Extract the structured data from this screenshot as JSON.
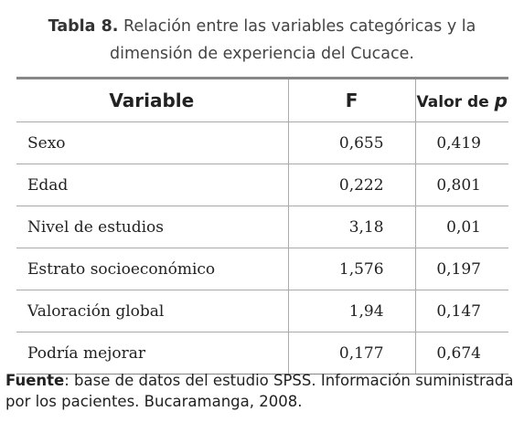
{
  "caption": {
    "label": "Tabla 8.",
    "text": "Relación entre las variables categóricas y la dimensión de experiencia del Cucace."
  },
  "table": {
    "header": {
      "variable": "Variable",
      "f": "F",
      "p_prefix": "Valor de ",
      "p_symbol": "p"
    },
    "rows": [
      [
        "Sexo",
        "0,655",
        "0,419"
      ],
      [
        "Edad",
        "0,222",
        "0,801"
      ],
      [
        "Nivel de estudios",
        "3,18",
        "0,01"
      ],
      [
        "Estrato socioeconómico",
        "1,576",
        "0,197"
      ],
      [
        "Valoración global",
        "1,94",
        "0,147"
      ],
      [
        "Podría mejorar",
        "0,177",
        "0,674"
      ]
    ]
  },
  "source": {
    "label": "Fuente",
    "text": ": base de datos del estudio SPSS. Información suministrada por los pacientes. Bucaramanga, 2008."
  }
}
